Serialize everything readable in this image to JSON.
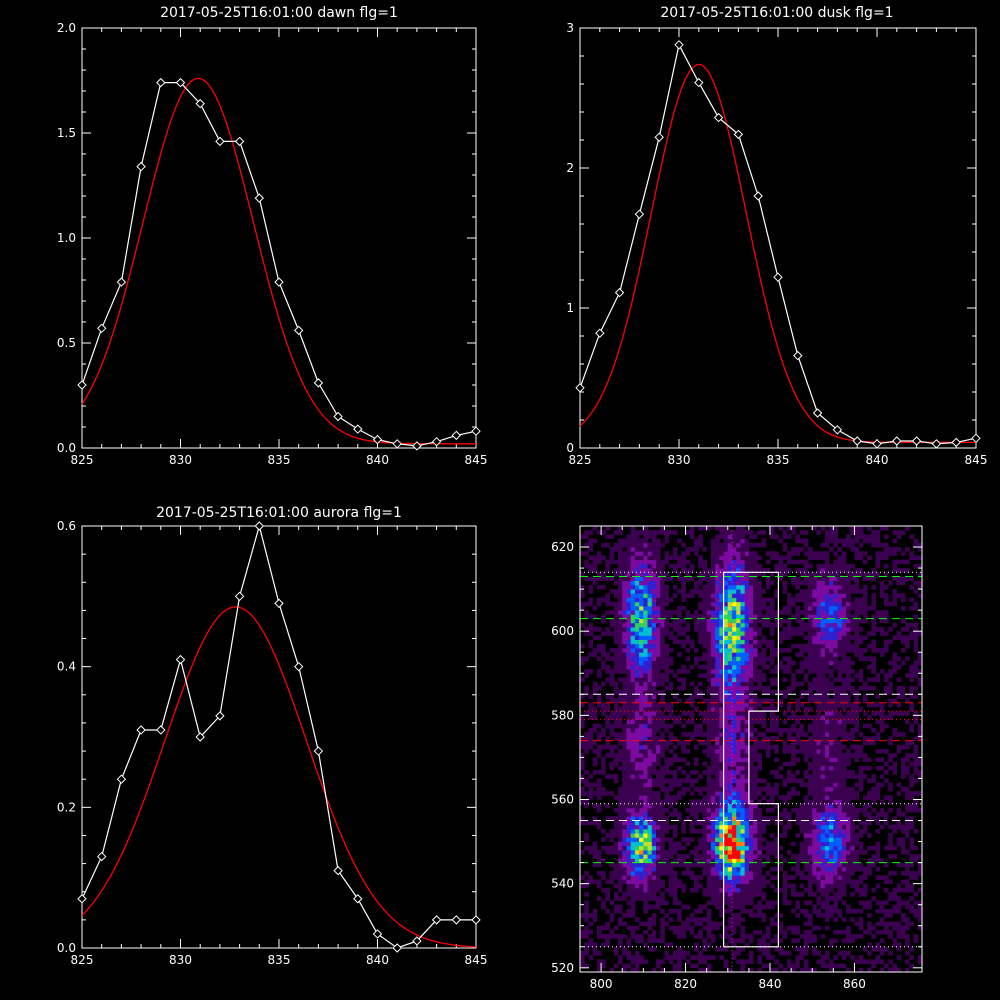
{
  "chart_data": [
    {
      "id": "dawn",
      "type": "line",
      "title": "2017-05-25T16:01:00 dawn flg=1",
      "xlim": [
        825,
        845
      ],
      "ylim": [
        0,
        2.0
      ],
      "xticks": [
        825,
        830,
        835,
        840,
        845
      ],
      "yticks": [
        0.0,
        0.5,
        1.0,
        1.5,
        2.0
      ],
      "ytick_labels": [
        "0.0",
        "0.5",
        "1.0",
        "1.5",
        "2.0"
      ],
      "grid": false,
      "series": [
        {
          "kind": "data",
          "color": "#ffffff",
          "marker": "diamond",
          "x": [
            825,
            826,
            827,
            828,
            829,
            830,
            831,
            832,
            833,
            834,
            835,
            836,
            837,
            838,
            839,
            840,
            841,
            842,
            843,
            844,
            845
          ],
          "y": [
            0.3,
            0.57,
            0.79,
            1.34,
            1.74,
            1.74,
            1.64,
            1.46,
            1.46,
            1.19,
            0.79,
            0.56,
            0.31,
            0.15,
            0.09,
            0.04,
            0.02,
            0.01,
            0.03,
            0.06,
            0.08
          ]
        },
        {
          "kind": "fit",
          "color": "#ff0000",
          "gaussian": {
            "amplitude": 1.74,
            "center": 830.9,
            "sigma": 2.8,
            "offset": 0.02
          }
        }
      ]
    },
    {
      "id": "dusk",
      "type": "line",
      "title": "2017-05-25T16:01:00 dusk flg=1",
      "xlim": [
        825,
        845
      ],
      "ylim": [
        0,
        3
      ],
      "xticks": [
        825,
        830,
        835,
        840,
        845
      ],
      "yticks": [
        0,
        1,
        2,
        3
      ],
      "ytick_labels": [
        "0",
        "1",
        "2",
        "3"
      ],
      "grid": false,
      "series": [
        {
          "kind": "data",
          "color": "#ffffff",
          "marker": "diamond",
          "x": [
            825,
            826,
            827,
            828,
            829,
            830,
            831,
            832,
            833,
            834,
            835,
            836,
            837,
            838,
            839,
            840,
            841,
            842,
            843,
            844,
            845
          ],
          "y": [
            0.43,
            0.82,
            1.11,
            1.67,
            2.22,
            2.88,
            2.61,
            2.36,
            2.24,
            1.8,
            1.22,
            0.66,
            0.25,
            0.13,
            0.05,
            0.03,
            0.05,
            0.05,
            0.03,
            0.04,
            0.07
          ]
        },
        {
          "kind": "fit",
          "color": "#ff0000",
          "gaussian": {
            "amplitude": 2.7,
            "center": 831.0,
            "sigma": 2.4,
            "offset": 0.04
          }
        }
      ]
    },
    {
      "id": "aurora",
      "type": "line",
      "title": "2017-05-25T16:01:00 aurora flg=1",
      "xlim": [
        825,
        845
      ],
      "ylim": [
        0,
        0.6
      ],
      "xticks": [
        825,
        830,
        835,
        840,
        845
      ],
      "yticks": [
        0.0,
        0.2,
        0.4,
        0.6
      ],
      "ytick_labels": [
        "0.0",
        "0.2",
        "0.4",
        "0.6"
      ],
      "grid": false,
      "series": [
        {
          "kind": "data",
          "color": "#ffffff",
          "marker": "diamond",
          "x": [
            825,
            826,
            827,
            828,
            829,
            830,
            831,
            832,
            833,
            834,
            835,
            836,
            837,
            838,
            839,
            840,
            841,
            842,
            843,
            844,
            845
          ],
          "y": [
            0.07,
            0.13,
            0.24,
            0.31,
            0.31,
            0.41,
            0.3,
            0.33,
            0.5,
            0.6,
            0.49,
            0.4,
            0.28,
            0.11,
            0.07,
            0.02,
            0.0,
            0.01,
            0.04,
            0.04,
            0.04
          ]
        },
        {
          "kind": "fit",
          "color": "#ff0000",
          "gaussian": {
            "amplitude": 0.485,
            "center": 832.8,
            "sigma": 3.6,
            "offset": 0.0
          }
        }
      ]
    },
    {
      "id": "image",
      "type": "heatmap",
      "title": "",
      "xlim": [
        795,
        876
      ],
      "ylim": [
        519,
        625
      ],
      "xticks": [
        800,
        820,
        840,
        860
      ],
      "yticks": [
        520,
        540,
        560,
        580,
        600,
        620
      ],
      "grid": false,
      "colormap": [
        "#000000",
        "#3c0050",
        "#7a0aa0",
        "#3020d0",
        "#0060ff",
        "#00c0d0",
        "#30d060",
        "#c0e020",
        "#ffff00",
        "#ff8000",
        "#ff0000"
      ],
      "blobs": [
        {
          "x": 809.5,
          "y": 603,
          "sx": 2.5,
          "sy": 9,
          "amp": 0.5
        },
        {
          "x": 831,
          "y": 601,
          "sx": 2.8,
          "sy": 10,
          "amp": 0.6
        },
        {
          "x": 854,
          "y": 604,
          "sx": 3,
          "sy": 6,
          "amp": 0.3
        },
        {
          "x": 809.5,
          "y": 549,
          "sx": 2.5,
          "sy": 5,
          "amp": 0.62
        },
        {
          "x": 831,
          "y": 550,
          "sx": 2.8,
          "sy": 6,
          "amp": 0.9
        },
        {
          "x": 854,
          "y": 550,
          "sx": 3,
          "sy": 6,
          "amp": 0.35
        },
        {
          "x": 809.5,
          "y": 573,
          "sx": 3,
          "sy": 8,
          "amp": 0.15
        },
        {
          "x": 831,
          "y": 573,
          "sx": 3,
          "sy": 8,
          "amp": 0.18
        },
        {
          "x": 854,
          "y": 573,
          "sx": 3,
          "sy": 8,
          "amp": 0.1
        }
      ],
      "rect_outline": {
        "color": "#ffffff",
        "points": [
          [
            829,
            525
          ],
          [
            842,
            525
          ],
          [
            842,
            559
          ],
          [
            835,
            559
          ],
          [
            835,
            581
          ],
          [
            842,
            581
          ],
          [
            842,
            614
          ],
          [
            829,
            614
          ],
          [
            829,
            525
          ]
        ]
      },
      "hlines": [
        {
          "y": 613,
          "color": "#00ff00",
          "style": "dash"
        },
        {
          "y": 603,
          "color": "#00ff00",
          "style": "dash"
        },
        {
          "y": 585,
          "color": "#ffffff",
          "style": "dash"
        },
        {
          "y": 583,
          "color": "#ff0000",
          "style": "dash"
        },
        {
          "y": 574,
          "color": "#ff0000",
          "style": "dash"
        },
        {
          "y": 555,
          "color": "#ffffff",
          "style": "dash"
        },
        {
          "y": 545,
          "color": "#00ff00",
          "style": "dash"
        },
        {
          "y": 614,
          "color": "#ffffff",
          "style": "dot"
        },
        {
          "y": 581,
          "color": "#ff0000",
          "style": "dot"
        },
        {
          "y": 579,
          "color": "#ff0000",
          "style": "dot"
        },
        {
          "y": 559,
          "color": "#ffffff",
          "style": "dot"
        },
        {
          "y": 525,
          "color": "#ffffff",
          "style": "dot"
        }
      ],
      "vlines": [
        {
          "x": 831,
          "color": "#ff00ff",
          "style": "dot"
        }
      ]
    }
  ]
}
